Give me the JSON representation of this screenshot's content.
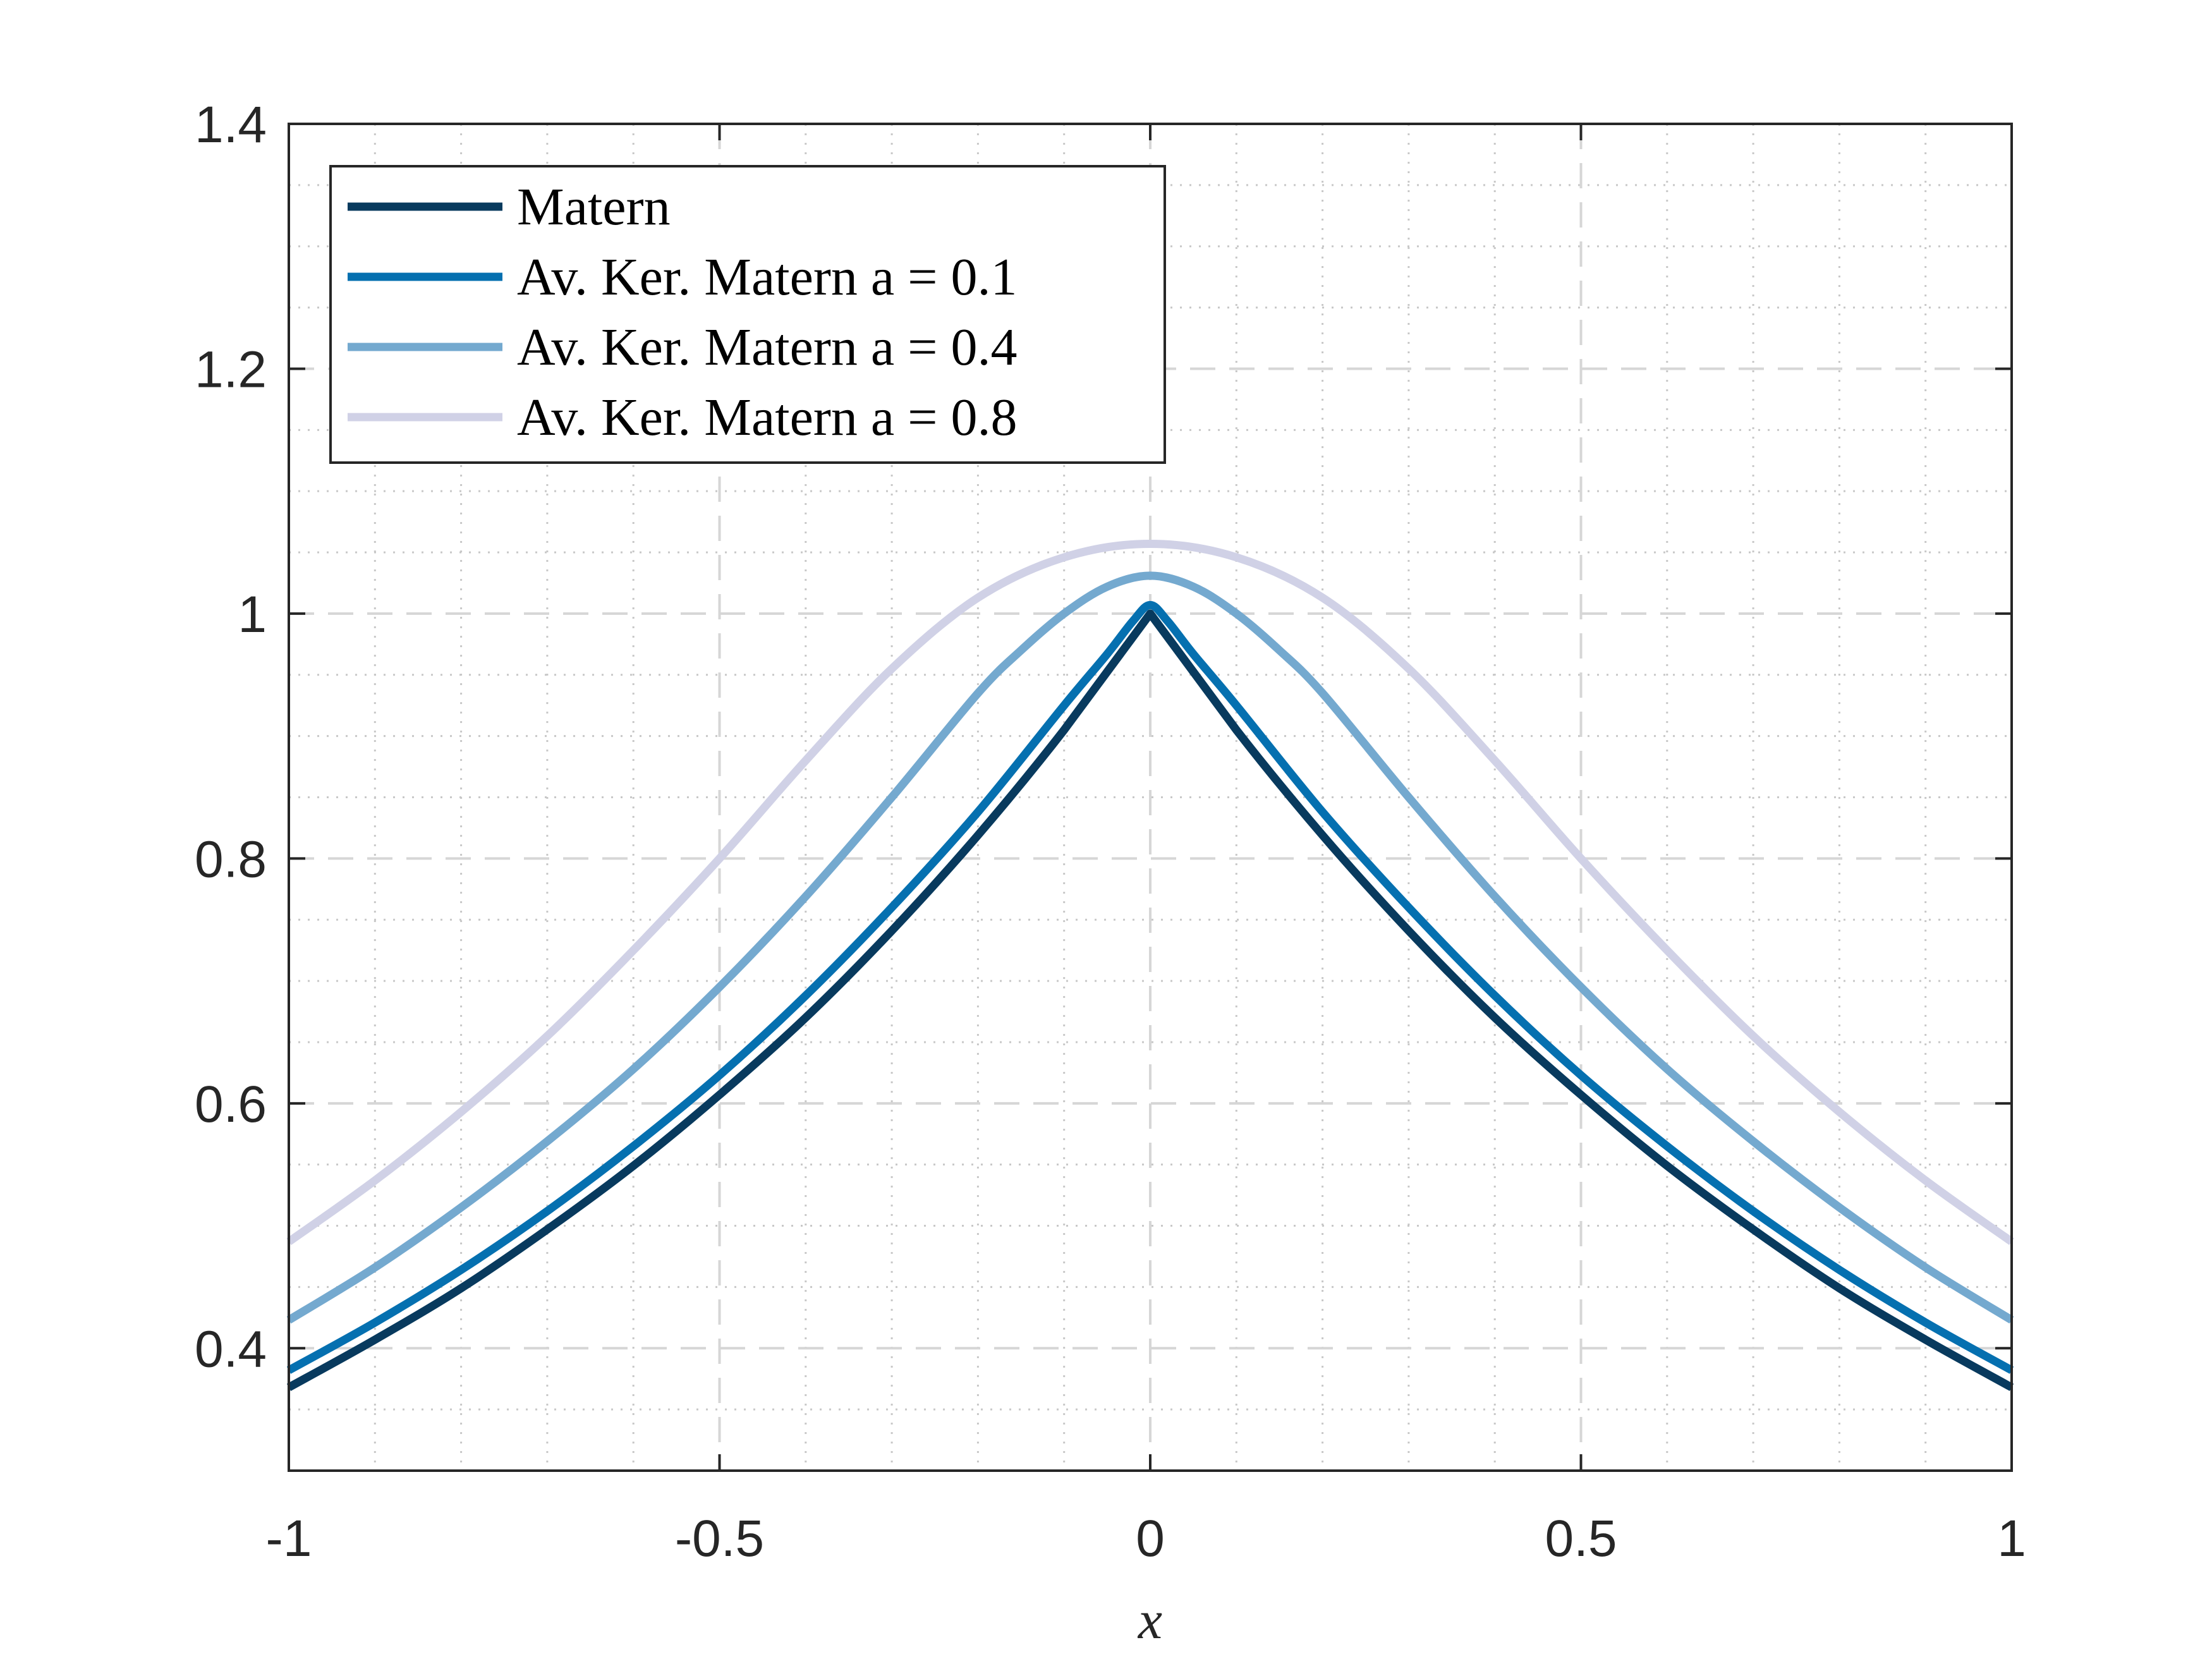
{
  "chart_data": {
    "type": "line",
    "title": "",
    "xlabel": "x",
    "ylabel": "",
    "xlim": [
      -1,
      1
    ],
    "ylim": [
      0.3,
      1.4
    ],
    "xticks": [
      -1,
      -0.5,
      0,
      0.5,
      1
    ],
    "xtick_labels": [
      "-1",
      "-0.5",
      "0",
      "0.5",
      "1"
    ],
    "yticks": [
      0.4,
      0.6,
      0.8,
      1.0,
      1.2,
      1.4
    ],
    "ytick_labels": [
      "0.4",
      "0.6",
      "0.8",
      "1",
      "1.2",
      "1.4"
    ],
    "grid": "major dashed, minor dotted",
    "legend_position": "top-left",
    "series": [
      {
        "name": "Matern",
        "color": "#083A5E",
        "x": [
          -1,
          -0.9,
          -0.8,
          -0.7,
          -0.6,
          -0.5,
          -0.4,
          -0.3,
          -0.2,
          -0.1,
          0,
          0.1,
          0.2,
          0.3,
          0.4,
          0.5,
          0.6,
          0.7,
          0.8,
          0.9,
          1
        ],
        "y": [
          0.368,
          0.407,
          0.449,
          0.497,
          0.549,
          0.607,
          0.67,
          0.741,
          0.819,
          0.905,
          1.0,
          0.905,
          0.819,
          0.741,
          0.67,
          0.607,
          0.549,
          0.497,
          0.449,
          0.407,
          0.368
        ]
      },
      {
        "name": "Av. Ker. Matern a = 0.1",
        "color": "#0570B0",
        "x": [
          -1,
          -0.9,
          -0.8,
          -0.7,
          -0.6,
          -0.5,
          -0.4,
          -0.3,
          -0.2,
          -0.1,
          -0.05,
          -0.02,
          0,
          0.02,
          0.05,
          0.1,
          0.2,
          0.3,
          0.4,
          0.5,
          0.6,
          0.7,
          0.8,
          0.9,
          1
        ],
        "y": [
          0.382,
          0.421,
          0.464,
          0.512,
          0.565,
          0.623,
          0.688,
          0.76,
          0.838,
          0.925,
          0.967,
          0.994,
          1.007,
          0.994,
          0.967,
          0.925,
          0.838,
          0.76,
          0.688,
          0.623,
          0.565,
          0.512,
          0.464,
          0.421,
          0.382
        ]
      },
      {
        "name": "Av. Ker. Matern a = 0.4",
        "color": "#74A9CF",
        "x": [
          -1,
          -0.9,
          -0.8,
          -0.7,
          -0.6,
          -0.5,
          -0.4,
          -0.3,
          -0.2,
          -0.15,
          -0.1,
          -0.05,
          0,
          0.05,
          0.1,
          0.15,
          0.2,
          0.3,
          0.4,
          0.5,
          0.6,
          0.7,
          0.8,
          0.9,
          1
        ],
        "y": [
          0.423,
          0.466,
          0.515,
          0.569,
          0.628,
          0.695,
          0.769,
          0.85,
          0.935,
          0.97,
          1.0,
          1.022,
          1.031,
          1.022,
          1.0,
          0.97,
          0.935,
          0.85,
          0.769,
          0.695,
          0.628,
          0.569,
          0.515,
          0.466,
          0.423
        ]
      },
      {
        "name": "Av. Ker. Matern a = 0.8",
        "color": "#D0D1E6",
        "x": [
          -1,
          -0.9,
          -0.8,
          -0.7,
          -0.6,
          -0.5,
          -0.4,
          -0.3,
          -0.2,
          -0.1,
          0,
          0.1,
          0.2,
          0.3,
          0.4,
          0.5,
          0.6,
          0.7,
          0.8,
          0.9,
          1
        ],
        "y": [
          0.487,
          0.537,
          0.593,
          0.655,
          0.725,
          0.8,
          0.88,
          0.955,
          1.013,
          1.046,
          1.057,
          1.046,
          1.013,
          0.955,
          0.88,
          0.8,
          0.725,
          0.655,
          0.593,
          0.537,
          0.487
        ]
      }
    ]
  }
}
